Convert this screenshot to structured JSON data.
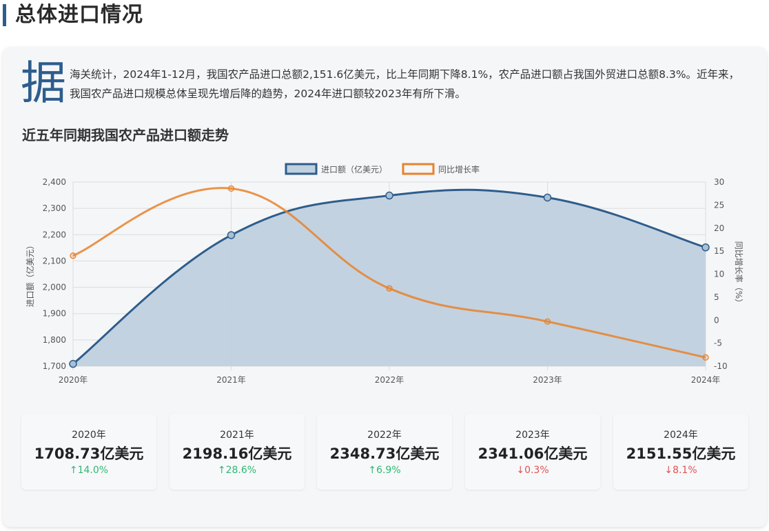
{
  "section": {
    "title": "总体进口情况"
  },
  "intro": {
    "dropcap": "据",
    "text": "海关统计，2024年1-12月，我国农产品进口总额2,151.6亿美元，比上年同期下降8.1%，农产品进口额占我国外贸进口总额8.3%。近年来，我国农产品进口规模总体呈现先增后降的趋势，2024年进口额较2023年有所下滑。"
  },
  "chart_title": "近五年同期我国农产品进口额走势",
  "colors": {
    "accent": "#2d5d8c",
    "import_line": "#2d5d8c",
    "import_fill": "#c0d0de",
    "growth_line": "#e8822a",
    "up": "#2eb872",
    "down": "#e05252"
  },
  "chart_data": {
    "type": "line",
    "categories": [
      "2020年",
      "2021年",
      "2022年",
      "2023年",
      "2024年"
    ],
    "series": [
      {
        "name": "进口额（亿美元）",
        "axis": "left",
        "style": "area",
        "values": [
          1708.73,
          2198.16,
          2348.73,
          2341.06,
          2151.55
        ]
      },
      {
        "name": "同比增长率",
        "axis": "right",
        "style": "line",
        "values": [
          14.0,
          28.6,
          6.9,
          -0.3,
          -8.1
        ]
      }
    ],
    "ylabel": "进口额（亿美元）",
    "y2label": "同比增长率（%）",
    "ylim": [
      1700,
      2400
    ],
    "y2lim": [
      -10,
      30
    ],
    "yticks": [
      "2,400",
      "2,300",
      "2,200",
      "2,100",
      "2,000",
      "1,900",
      "1,800",
      "1,700"
    ],
    "y2ticks": [
      "30",
      "25",
      "20",
      "15",
      "10",
      "5",
      "0",
      "-5",
      "-10"
    ],
    "legend": "top-center",
    "grid": true
  },
  "stats": [
    {
      "year": "2020年",
      "value": "1708.73亿美元",
      "change": "↑14.0%",
      "dir": "up"
    },
    {
      "year": "2021年",
      "value": "2198.16亿美元",
      "change": "↑28.6%",
      "dir": "up"
    },
    {
      "year": "2022年",
      "value": "2348.73亿美元",
      "change": "↑6.9%",
      "dir": "up"
    },
    {
      "year": "2023年",
      "value": "2341.06亿美元",
      "change": "↓0.3%",
      "dir": "down"
    },
    {
      "year": "2024年",
      "value": "2151.55亿美元",
      "change": "↓8.1%",
      "dir": "down"
    }
  ]
}
